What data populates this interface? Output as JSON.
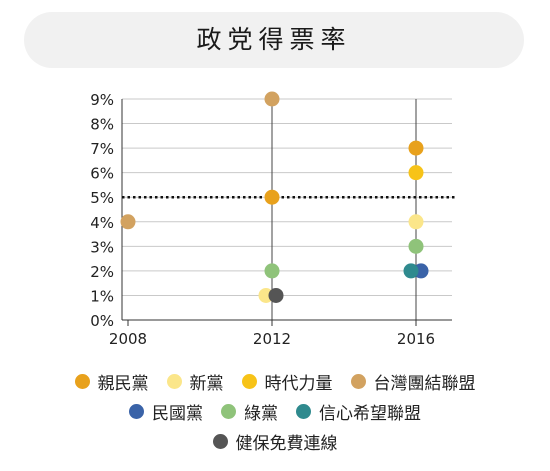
{
  "title": "政党得票率",
  "chart_data": {
    "type": "scatter",
    "title": "政党得票率",
    "xlabel": "",
    "ylabel": "",
    "x_ticks": [
      "2008",
      "2012",
      "2016"
    ],
    "y_ticks": [
      "0%",
      "1%",
      "2%",
      "3%",
      "4%",
      "5%",
      "6%",
      "7%",
      "8%",
      "9%"
    ],
    "ylim": [
      0,
      9
    ],
    "y_unit": "%",
    "threshold": 5,
    "grid": true,
    "legend_position": "bottom",
    "series": [
      {
        "name": "親民黨",
        "color": "#e8a11c",
        "points": [
          {
            "x": 2012,
            "y": 5.0
          },
          {
            "x": 2016,
            "y": 7.0
          }
        ]
      },
      {
        "name": "新黨",
        "color": "#fbe68a",
        "points": [
          {
            "x": 2012,
            "y": 1.0
          },
          {
            "x": 2016,
            "y": 4.0
          }
        ]
      },
      {
        "name": "時代力量",
        "color": "#f7c318",
        "points": [
          {
            "x": 2016,
            "y": 6.0
          }
        ]
      },
      {
        "name": "台灣團結聯盟",
        "color": "#d2a260",
        "points": [
          {
            "x": 2008,
            "y": 4.0
          },
          {
            "x": 2012,
            "y": 9.0
          }
        ]
      },
      {
        "name": "民國黨",
        "color": "#3a63a8",
        "points": [
          {
            "x": 2016,
            "y": 2.0
          }
        ]
      },
      {
        "name": "綠黨",
        "color": "#8fc37a",
        "points": [
          {
            "x": 2012,
            "y": 2.0
          },
          {
            "x": 2016,
            "y": 3.0
          }
        ]
      },
      {
        "name": "信心希望聯盟",
        "color": "#2f8a8e",
        "points": [
          {
            "x": 2016,
            "y": 2.0
          }
        ]
      },
      {
        "name": "健保免費連線",
        "color": "#555555",
        "points": [
          {
            "x": 2012,
            "y": 1.0
          }
        ]
      }
    ]
  }
}
